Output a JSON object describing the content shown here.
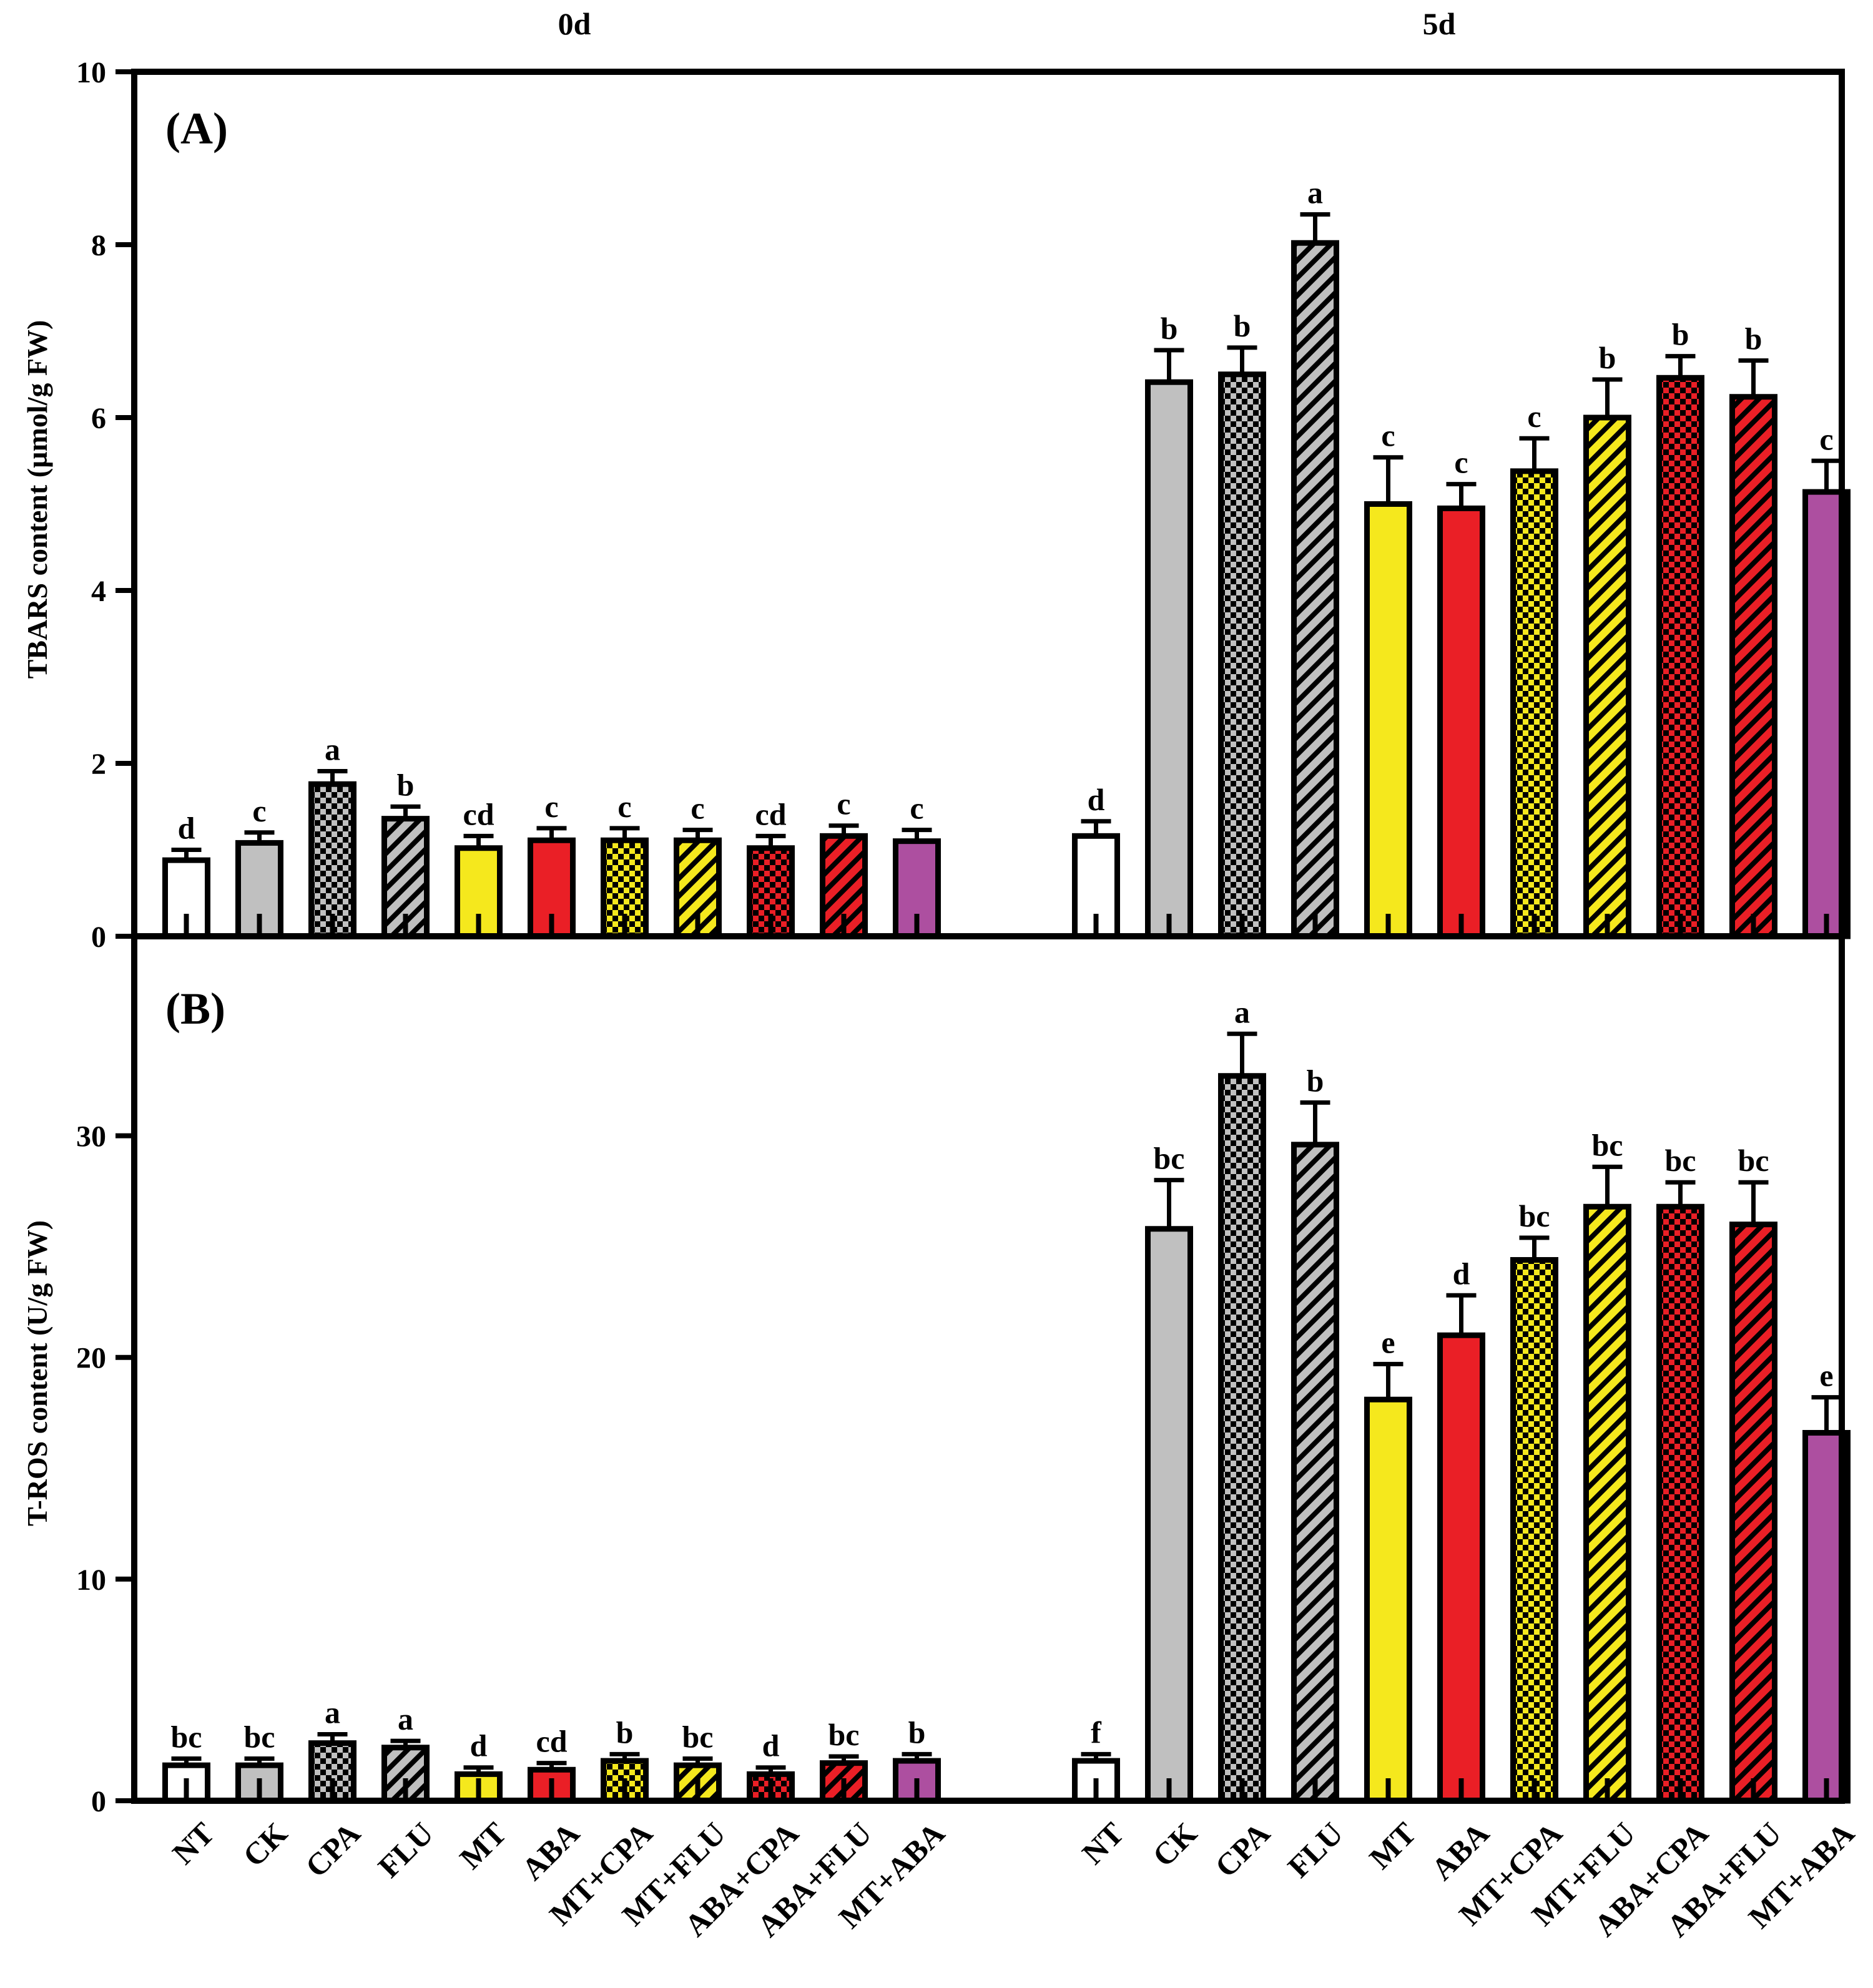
{
  "figure": {
    "group_labels": [
      "0d",
      "5d"
    ],
    "categories": [
      "NT",
      "CK",
      "CPA",
      "FLU",
      "MT",
      "ABA",
      "MT+CPA",
      "MT+FLU",
      "ABA+CPA",
      "ABA+FLU",
      "MT+ABA"
    ],
    "styles": {
      "NT": {
        "color": "#ffffff",
        "pattern": "solid"
      },
      "CK": {
        "color": "#c0c0c0",
        "pattern": "solid"
      },
      "CPA": {
        "color": "#c0c0c0",
        "pattern": "checker"
      },
      "FLU": {
        "color": "#c0c0c0",
        "pattern": "stripe"
      },
      "MT": {
        "color": "#f5e81d",
        "pattern": "solid"
      },
      "ABA": {
        "color": "#ea1f26",
        "pattern": "solid"
      },
      "MT+CPA": {
        "color": "#f5e81d",
        "pattern": "checker"
      },
      "MT+FLU": {
        "color": "#f5e81d",
        "pattern": "stripe"
      },
      "ABA+CPA": {
        "color": "#ea1f26",
        "pattern": "checker"
      },
      "ABA+FLU": {
        "color": "#ea1f26",
        "pattern": "stripe"
      },
      "MT+ABA": {
        "color": "#ad4fa0",
        "pattern": "solid"
      }
    }
  },
  "chart_data": [
    {
      "type": "bar",
      "panel_label": "(A)",
      "ylabel": "TBARS content (µmol/g FW)",
      "ylim": [
        0,
        10
      ],
      "yticks": [
        0,
        2,
        4,
        6,
        8,
        10
      ],
      "series": [
        {
          "name": "0d",
          "values": [
            0.88,
            1.08,
            1.76,
            1.36,
            1.02,
            1.11,
            1.11,
            1.11,
            1.02,
            1.16,
            1.1
          ],
          "errors": [
            0.12,
            0.12,
            0.15,
            0.14,
            0.14,
            0.14,
            0.14,
            0.12,
            0.14,
            0.12,
            0.13
          ],
          "letters": [
            "d",
            "c",
            "a",
            "b",
            "cd",
            "c",
            "c",
            "c",
            "cd",
            "c",
            "c"
          ]
        },
        {
          "name": "5d",
          "values": [
            1.16,
            6.41,
            6.5,
            8.02,
            5.0,
            4.95,
            5.38,
            6.0,
            6.46,
            6.24,
            5.14
          ],
          "errors": [
            0.17,
            0.37,
            0.31,
            0.33,
            0.54,
            0.28,
            0.38,
            0.44,
            0.25,
            0.42,
            0.36
          ],
          "letters": [
            "d",
            "b",
            "b",
            "a",
            "c",
            "c",
            "c",
            "b",
            "b",
            "b",
            "c"
          ]
        }
      ]
    },
    {
      "type": "bar",
      "panel_label": "(B)",
      "ylabel": "T-ROS content (U/g FW)",
      "ylim": [
        0,
        39
      ],
      "yticks": [
        0,
        10,
        20,
        30
      ],
      "series": [
        {
          "name": "0d",
          "values": [
            1.6,
            1.6,
            2.6,
            2.4,
            1.2,
            1.4,
            1.8,
            1.6,
            1.2,
            1.7,
            1.8
          ],
          "errors": [
            0.3,
            0.3,
            0.4,
            0.3,
            0.3,
            0.3,
            0.3,
            0.3,
            0.3,
            0.3,
            0.3
          ],
          "letters": [
            "bc",
            "bc",
            "a",
            "a",
            "d",
            "cd",
            "b",
            "bc",
            "d",
            "bc",
            "b"
          ]
        },
        {
          "name": "5d",
          "values": [
            1.8,
            25.8,
            32.7,
            29.6,
            18.1,
            21.0,
            24.4,
            26.8,
            26.8,
            26.0,
            16.6
          ],
          "errors": [
            0.3,
            2.2,
            1.9,
            1.9,
            1.6,
            1.8,
            1.0,
            1.8,
            1.1,
            1.9,
            1.6
          ],
          "letters": [
            "f",
            "bc",
            "a",
            "b",
            "e",
            "d",
            "bc",
            "bc",
            "bc",
            "bc",
            "e"
          ]
        }
      ]
    }
  ]
}
